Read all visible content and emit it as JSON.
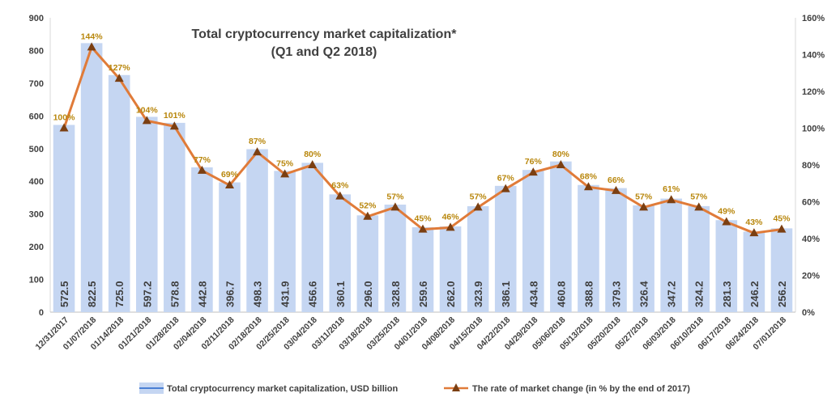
{
  "chart_data": {
    "type": "bar+line",
    "title": "Total cryptocurrency market capitalization*",
    "subtitle": "(Q1 and Q2 2018)",
    "categories": [
      "12/31/2017",
      "01/07/2018",
      "01/14/2018",
      "01/21/2018",
      "01/28/2018",
      "02/04/2018",
      "02/11/2018",
      "02/18/2018",
      "02/25/2018",
      "03/04/2018",
      "03/11/2018",
      "03/18/2018",
      "03/25/2018",
      "04/01/2018",
      "04/08/2018",
      "04/15/2018",
      "04/22/2018",
      "04/29/2018",
      "05/06/2018",
      "05/13/2018",
      "05/20/2018",
      "05/27/2018",
      "06/03/2018",
      "06/10/2018",
      "06/17/2018",
      "06/24/2018",
      "07/01/2018"
    ],
    "series": [
      {
        "name": "Total cryptocurrency market capitalization, USD billion",
        "type": "bar",
        "axis": "left",
        "color": "#c5d6f2",
        "values": [
          572.5,
          822.5,
          725.0,
          597.2,
          578.8,
          442.8,
          396.7,
          498.3,
          431.9,
          456.6,
          360.1,
          296.0,
          328.8,
          259.6,
          262.0,
          323.9,
          386.1,
          434.8,
          460.8,
          388.8,
          379.3,
          326.4,
          347.2,
          324.2,
          281.3,
          246.2,
          256.2
        ],
        "value_labels": [
          "572.5",
          "822.5",
          "725.0",
          "597.2",
          "578.8",
          "442.8",
          "396.7",
          "498.3",
          "431.9",
          "456.6",
          "360.1",
          "296.0",
          "328.8",
          "259.6",
          "262.0",
          "323.9",
          "386.1",
          "434.8",
          "460.8",
          "388.8",
          "379.3",
          "326.4",
          "347.2",
          "324.2",
          "281.3",
          "246.2",
          "256.2"
        ]
      },
      {
        "name": "The rate of market change (in % by the end of 2017)",
        "type": "line",
        "axis": "right",
        "color": "#e07b39",
        "marker_color": "#7b3f12",
        "values": [
          100,
          144,
          127,
          104,
          101,
          77,
          69,
          87,
          75,
          80,
          63,
          52,
          57,
          45,
          46,
          57,
          67,
          76,
          80,
          68,
          66,
          57,
          61,
          57,
          49,
          43,
          45
        ],
        "value_labels": [
          "100%",
          "144%",
          "127%",
          "104%",
          "101%",
          "77%",
          "69%",
          "87%",
          "75%",
          "80%",
          "63%",
          "52%",
          "57%",
          "45%",
          "46%",
          "57%",
          "67%",
          "76%",
          "80%",
          "68%",
          "66%",
          "57%",
          "61%",
          "57%",
          "49%",
          "43%",
          "45%"
        ]
      }
    ],
    "y_left": {
      "min": 0,
      "max": 900,
      "ticks": [
        "0",
        "100",
        "200",
        "300",
        "400",
        "500",
        "600",
        "700",
        "800",
        "900"
      ]
    },
    "y_right": {
      "min": 0,
      "max": 160,
      "ticks": [
        "0%",
        "20%",
        "40%",
        "60%",
        "80%",
        "100%",
        "120%",
        "140%",
        "160%"
      ]
    },
    "grid": false,
    "legend_position": "bottom"
  }
}
